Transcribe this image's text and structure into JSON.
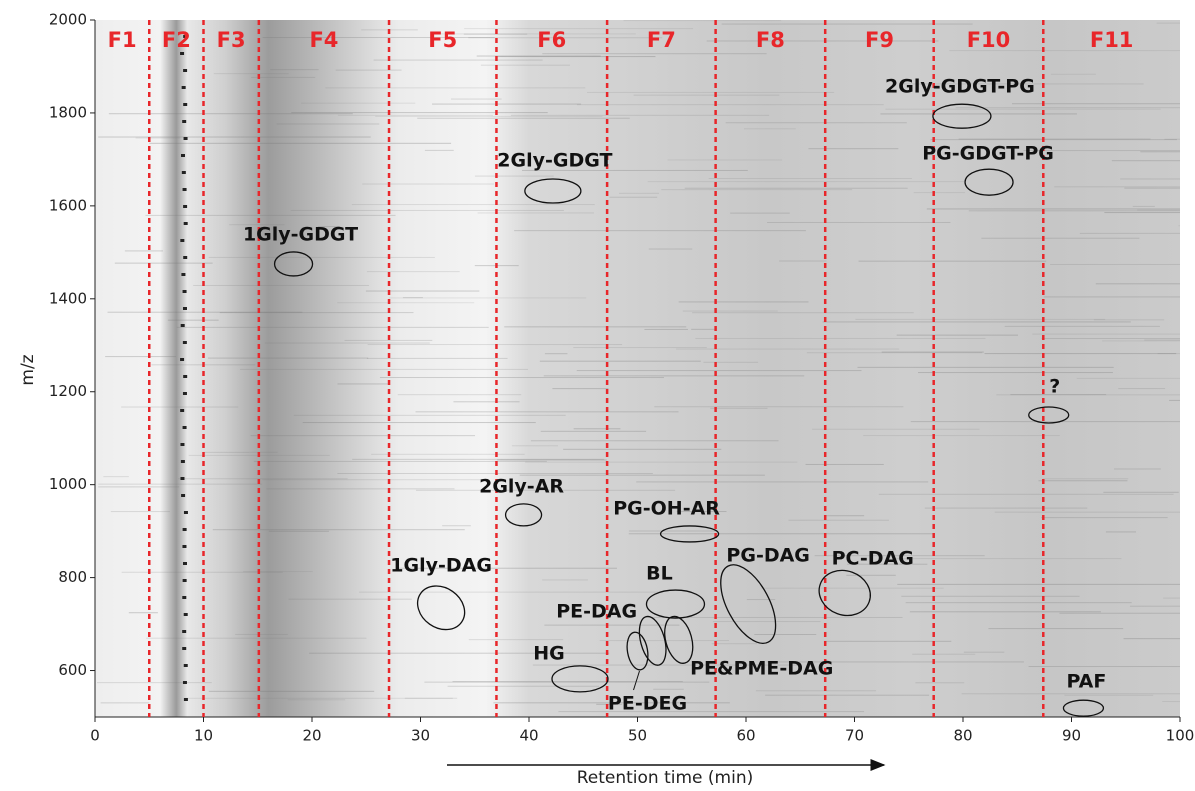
{
  "chart_data": {
    "type": "heatmap-annotated",
    "x_label": "Retention time (min)",
    "y_label": "m/z",
    "xlim": [
      0,
      100
    ],
    "ylim": [
      500,
      2000
    ],
    "xticks": [
      0,
      10,
      20,
      30,
      40,
      50,
      60,
      70,
      80,
      90,
      100
    ],
    "yticks": [
      600,
      800,
      1000,
      1200,
      1400,
      1600,
      1800,
      2000
    ],
    "fraction_color": "#e8262a",
    "fractions": [
      "F1",
      "F2",
      "F3",
      "F4",
      "F5",
      "F6",
      "F7",
      "F8",
      "F9",
      "F10",
      "F11"
    ],
    "fraction_boundaries": [
      5,
      10,
      15.1,
      27.1,
      37,
      47.2,
      57.2,
      67.3,
      77.3,
      87.4
    ],
    "annotations": [
      {
        "label": "1Gly-GDGT",
        "x": 18.3,
        "y": 1475
      },
      {
        "label": "2Gly-GDGT",
        "x": 42.2,
        "y": 1632
      },
      {
        "label": "2Gly-GDGT-PG",
        "x": 79.9,
        "y": 1793
      },
      {
        "label": "PG-GDGT-PG",
        "x": 82.4,
        "y": 1651
      },
      {
        "label": "?",
        "x": 87.9,
        "y": 1150
      },
      {
        "label": "2Gly-AR",
        "x": 39.5,
        "y": 935
      },
      {
        "label": "PG-OH-AR",
        "x": 54.8,
        "y": 894
      },
      {
        "label": "1Gly-DAG",
        "x": 31.9,
        "y": 735
      },
      {
        "label": "BL",
        "x": 53.5,
        "y": 743
      },
      {
        "label": "PG-DAG",
        "x": 60.2,
        "y": 743
      },
      {
        "label": "PC-DAG",
        "x": 69.1,
        "y": 767
      },
      {
        "label": "PE-DAG",
        "x": 51.4,
        "y": 664
      },
      {
        "label": "PE&PME-DAG",
        "x": 53.8,
        "y": 666
      },
      {
        "label": "PE-DEG",
        "x": 50,
        "y": 642
      },
      {
        "label": "HG",
        "x": 44.7,
        "y": 582
      },
      {
        "label": "PAF",
        "x": 91.1,
        "y": 519
      }
    ]
  }
}
